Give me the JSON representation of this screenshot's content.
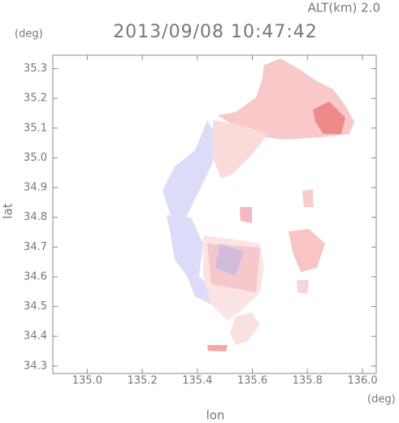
{
  "chart_data": {
    "type": "map",
    "title": "2013/09/08 10:47:42",
    "annotation": "ALT(km) 2.0",
    "xlabel": "lon",
    "ylabel": "lat",
    "xunit": "(deg)",
    "yunit": "(deg)",
    "xlim": [
      134.875,
      136.05
    ],
    "ylim": [
      34.275,
      35.345
    ],
    "xticks": [
      {
        "value": 135,
        "label": "135.0"
      },
      135.2,
      135.4,
      135.6,
      135.8,
      {
        "value": 136,
        "label": "136.0"
      }
    ],
    "yticks": [
      34.3,
      34.4,
      34.5,
      34.6,
      34.7,
      34.8,
      34.9,
      {
        "value": 35,
        "label": "35.0"
      },
      35.1,
      35.2,
      35.3
    ]
  }
}
